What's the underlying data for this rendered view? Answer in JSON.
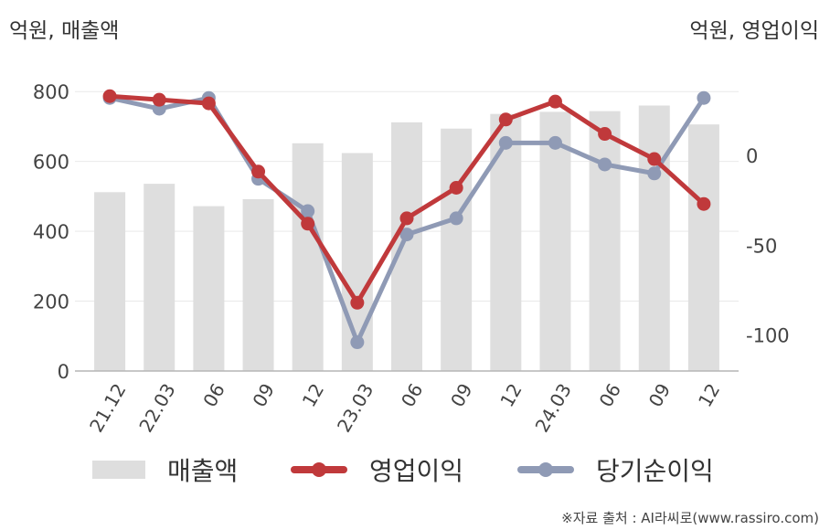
{
  "units": {
    "left": "억원, 매출액",
    "right": "억원, 영업이익"
  },
  "chart_data": {
    "type": "bar+line",
    "categories": [
      "21.12",
      "22.03",
      "06",
      "09",
      "12",
      "23.03",
      "06",
      "09",
      "12",
      "24.03",
      "06",
      "09",
      "12"
    ],
    "bar_series": {
      "name": "매출액",
      "axis": "left",
      "color": "#dedede",
      "values": [
        512,
        536,
        472,
        492,
        652,
        624,
        712,
        694,
        736,
        742,
        744,
        760,
        706
      ]
    },
    "line_series": [
      {
        "name": "영업이익",
        "axis": "right",
        "color": "#c0393b",
        "values": [
          33,
          31,
          29,
          -9,
          -38,
          -82,
          -35,
          -18,
          20,
          30,
          12,
          -2,
          -27
        ]
      },
      {
        "name": "당기순이익",
        "axis": "right",
        "color": "#8f9ab5",
        "values": [
          32,
          26,
          32,
          -13,
          -31,
          -104,
          -44,
          -35,
          7,
          7,
          -5,
          -10,
          32
        ]
      }
    ],
    "left_axis": {
      "ylim": [
        0,
        900
      ],
      "ticks": [
        0,
        200,
        400,
        600,
        800
      ]
    },
    "right_axis": {
      "ylim": [
        -120,
        55
      ],
      "ticks": [
        -100,
        -50,
        0
      ]
    },
    "grid": true,
    "legend_position": "bottom"
  },
  "legend": {
    "items": [
      "매출액",
      "영업이익",
      "당기순이익"
    ]
  },
  "source": "※자료 출처 : AI라씨로(www.rassiro.com)"
}
